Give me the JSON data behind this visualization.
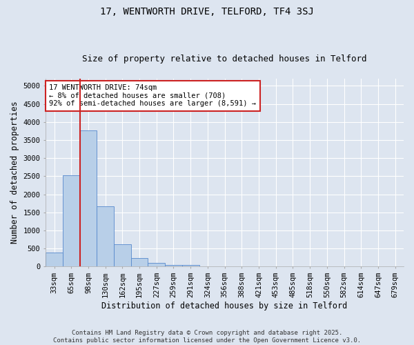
{
  "title": "17, WENTWORTH DRIVE, TELFORD, TF4 3SJ",
  "subtitle": "Size of property relative to detached houses in Telford",
  "xlabel": "Distribution of detached houses by size in Telford",
  "ylabel": "Number of detached properties",
  "categories": [
    "33sqm",
    "65sqm",
    "98sqm",
    "130sqm",
    "162sqm",
    "195sqm",
    "227sqm",
    "259sqm",
    "291sqm",
    "324sqm",
    "356sqm",
    "388sqm",
    "421sqm",
    "453sqm",
    "485sqm",
    "518sqm",
    "550sqm",
    "582sqm",
    "614sqm",
    "647sqm",
    "679sqm"
  ],
  "bar_heights": [
    390,
    2530,
    3760,
    1660,
    620,
    240,
    110,
    50,
    40,
    0,
    0,
    0,
    0,
    0,
    0,
    0,
    0,
    0,
    0,
    0,
    0
  ],
  "bar_color": "#b8cfe8",
  "bar_edge_color": "#5588cc",
  "ylim": [
    0,
    5200
  ],
  "yticks": [
    0,
    500,
    1000,
    1500,
    2000,
    2500,
    3000,
    3500,
    4000,
    4500,
    5000
  ],
  "vline_x": 1.5,
  "vline_color": "#cc2222",
  "annotation_text": "17 WENTWORTH DRIVE: 74sqm\n← 8% of detached houses are smaller (708)\n92% of semi-detached houses are larger (8,591) →",
  "annotation_box_color": "#ffffff",
  "annotation_box_edge": "#cc2222",
  "footer_text": "Contains HM Land Registry data © Crown copyright and database right 2025.\nContains public sector information licensed under the Open Government Licence v3.0.",
  "bg_color": "#dde5f0",
  "plot_bg_color": "#dde5f0",
  "grid_color": "#ffffff",
  "title_fontsize": 10,
  "subtitle_fontsize": 9,
  "tick_fontsize": 7.5,
  "axis_label_fontsize": 8.5,
  "footer_fontsize": 6.5,
  "annotation_fontsize": 7.5
}
